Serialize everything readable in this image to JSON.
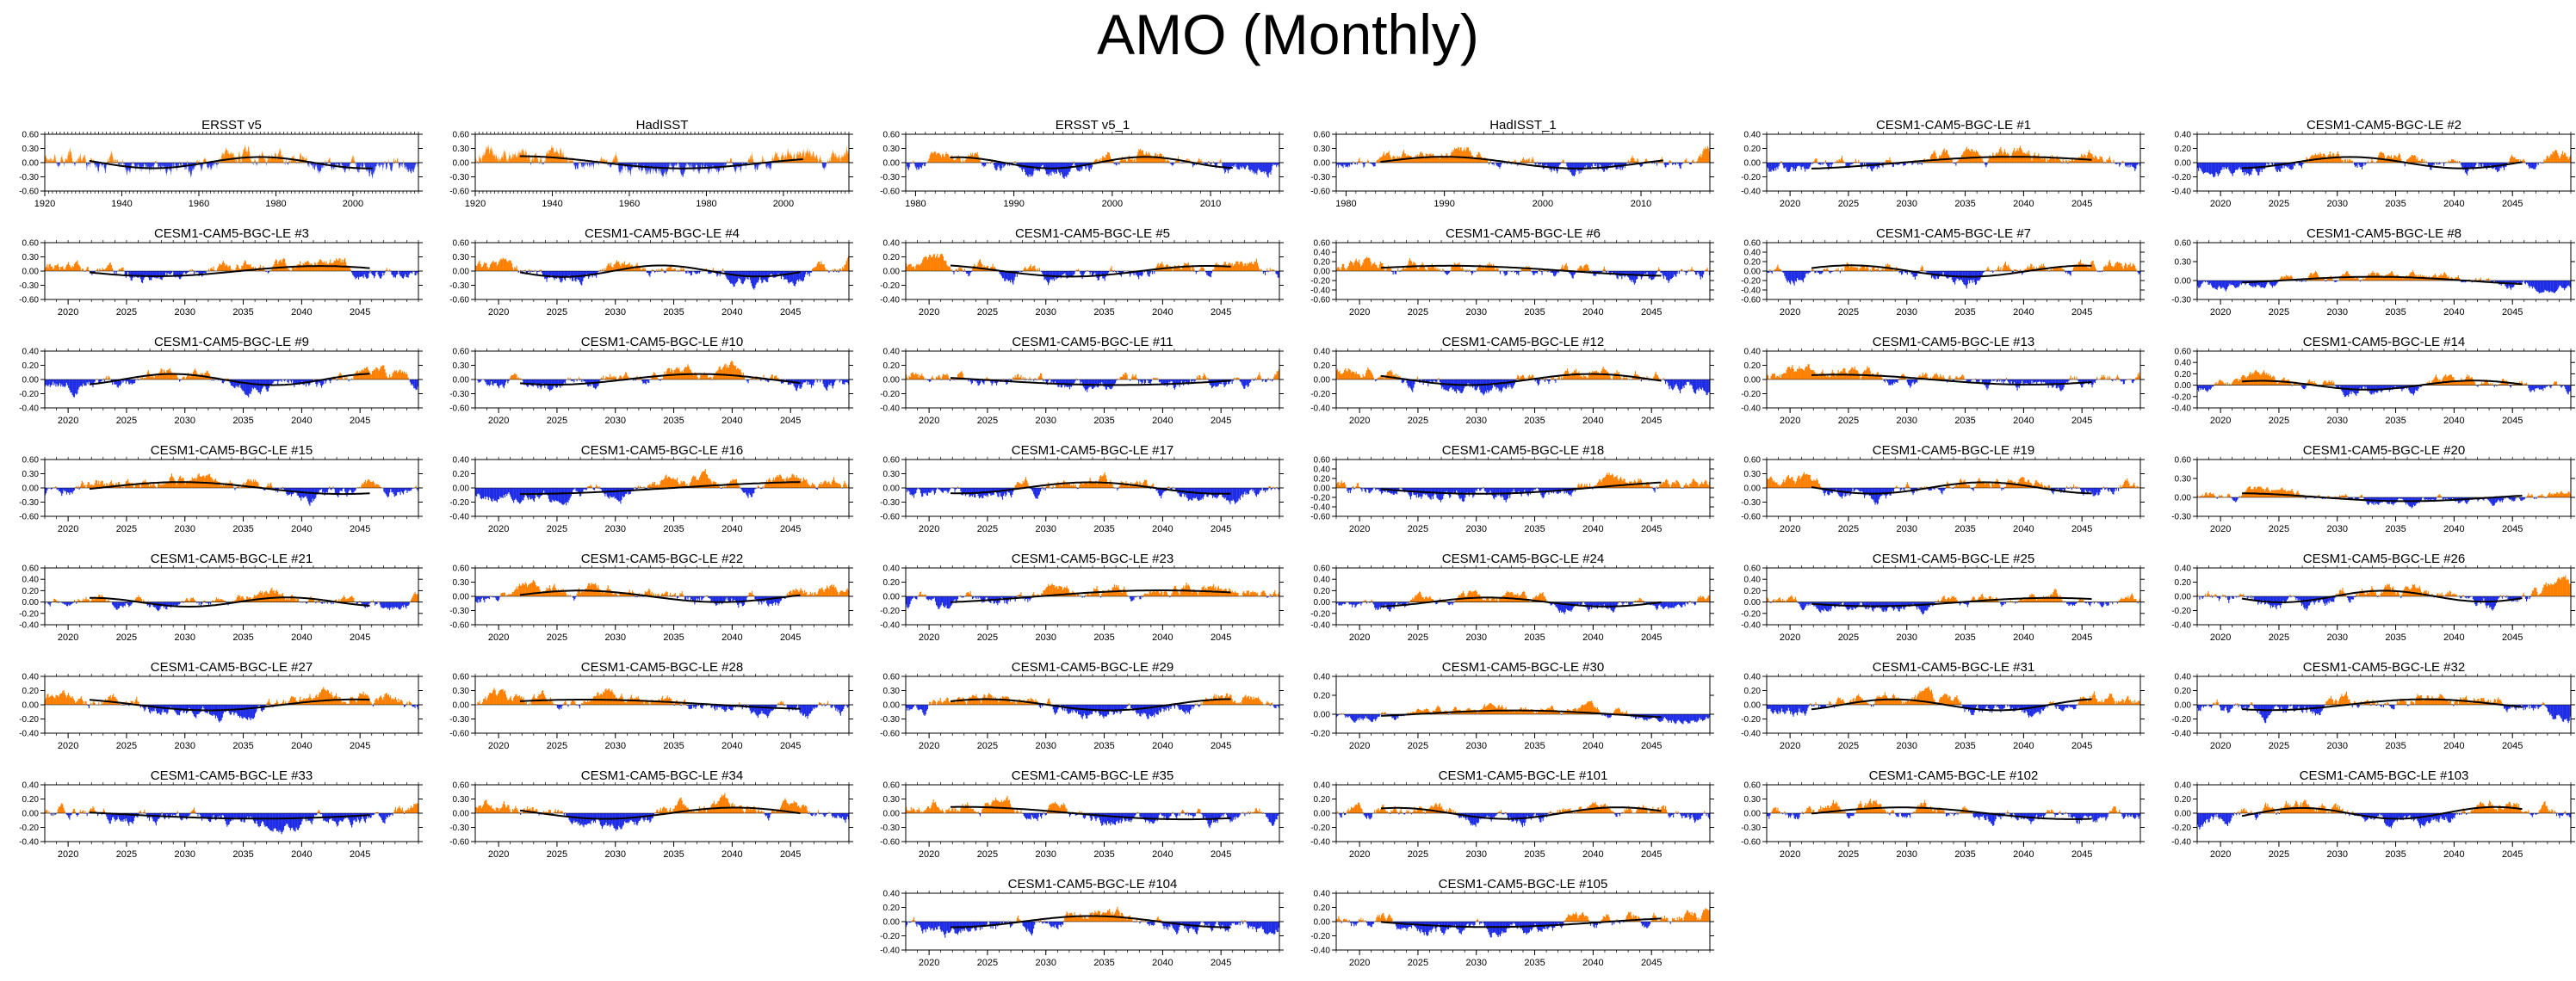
{
  "title": "AMO (Monthly)",
  "colors": {
    "positive": "#ff8000",
    "negative": "#1f2ee6",
    "trend": "#000000",
    "axis": "#000000"
  },
  "panels": [
    {
      "title": "ERSST v5",
      "period": "historical",
      "xticks": [
        "1920",
        "1940",
        "1960",
        "1980",
        "2000"
      ],
      "yticks": [
        "0.60",
        "0.30",
        "0.00",
        "-0.30",
        "-0.60"
      ],
      "ylim": [
        -0.6,
        0.6
      ]
    },
    {
      "title": "HadISST",
      "period": "historical",
      "xticks": [
        "1920",
        "1940",
        "1960",
        "1980",
        "2000"
      ],
      "yticks": [
        "0.60",
        "0.30",
        "0.00",
        "-0.30",
        "-0.60"
      ],
      "ylim": [
        -0.6,
        0.6
      ]
    },
    {
      "title": "ERSST v5_1",
      "period": "recent",
      "xticks": [
        "1980",
        "1990",
        "2000",
        "2010"
      ],
      "yticks": [
        "0.60",
        "0.30",
        "0.00",
        "-0.30",
        "-0.60"
      ],
      "ylim": [
        -0.6,
        0.6
      ]
    },
    {
      "title": "HadISST_1",
      "period": "recent",
      "xticks": [
        "1980",
        "1990",
        "2000",
        "2010"
      ],
      "yticks": [
        "0.60",
        "0.30",
        "0.00",
        "-0.30",
        "-0.60"
      ],
      "ylim": [
        -0.6,
        0.6
      ]
    },
    {
      "title": "CESM1-CAM5-BGC-LE #1",
      "period": "future",
      "xticks": [
        "2020",
        "2025",
        "2030",
        "2035",
        "2040",
        "2045"
      ],
      "yticks": [
        "0.40",
        "0.20",
        "0.00",
        "-0.20",
        "-0.40"
      ],
      "ylim": [
        -0.4,
        0.4
      ]
    },
    {
      "title": "CESM1-CAM5-BGC-LE #2",
      "period": "future",
      "xticks": [
        "2020",
        "2025",
        "2030",
        "2035",
        "2040",
        "2045"
      ],
      "yticks": [
        "0.40",
        "0.20",
        "0.00",
        "-0.20",
        "-0.40"
      ],
      "ylim": [
        -0.4,
        0.4
      ]
    },
    {
      "title": "CESM1-CAM5-BGC-LE #3",
      "period": "future",
      "xticks": [
        "2020",
        "2025",
        "2030",
        "2035",
        "2040",
        "2045"
      ],
      "yticks": [
        "0.60",
        "0.30",
        "0.00",
        "-0.30",
        "-0.60"
      ],
      "ylim": [
        -0.6,
        0.6
      ]
    },
    {
      "title": "CESM1-CAM5-BGC-LE #4",
      "period": "future",
      "xticks": [
        "2020",
        "2025",
        "2030",
        "2035",
        "2040",
        "2045"
      ],
      "yticks": [
        "0.60",
        "0.30",
        "0.00",
        "-0.30",
        "-0.60"
      ],
      "ylim": [
        -0.6,
        0.6
      ]
    },
    {
      "title": "CESM1-CAM5-BGC-LE #5",
      "period": "future",
      "xticks": [
        "2020",
        "2025",
        "2030",
        "2035",
        "2040",
        "2045"
      ],
      "yticks": [
        "0.40",
        "0.20",
        "0.00",
        "-0.20",
        "-0.40"
      ],
      "ylim": [
        -0.4,
        0.4
      ]
    },
    {
      "title": "CESM1-CAM5-BGC-LE #6",
      "period": "future",
      "xticks": [
        "2020",
        "2025",
        "2030",
        "2035",
        "2040",
        "2045"
      ],
      "yticks": [
        "0.60",
        "0.40",
        "0.20",
        "0.00",
        "-0.20",
        "-0.40",
        "-0.60"
      ],
      "ylim": [
        -0.6,
        0.6
      ]
    },
    {
      "title": "CESM1-CAM5-BGC-LE #7",
      "period": "future",
      "xticks": [
        "2020",
        "2025",
        "2030",
        "2035",
        "2040",
        "2045"
      ],
      "yticks": [
        "0.60",
        "0.40",
        "0.20",
        "0.00",
        "-0.20",
        "-0.40",
        "-0.60"
      ],
      "ylim": [
        -0.6,
        0.6
      ]
    },
    {
      "title": "CESM1-CAM5-BGC-LE #8",
      "period": "future",
      "xticks": [
        "2020",
        "2025",
        "2030",
        "2035",
        "2040",
        "2045"
      ],
      "yticks": [
        "0.60",
        "0.30",
        "0.00",
        "-0.30"
      ],
      "ylim": [
        -0.3,
        0.6
      ]
    },
    {
      "title": "CESM1-CAM5-BGC-LE #9",
      "period": "future",
      "xticks": [
        "2020",
        "2025",
        "2030",
        "2035",
        "2040",
        "2045"
      ],
      "yticks": [
        "0.40",
        "0.20",
        "0.00",
        "-0.20",
        "-0.40"
      ],
      "ylim": [
        -0.4,
        0.4
      ]
    },
    {
      "title": "CESM1-CAM5-BGC-LE #10",
      "period": "future",
      "xticks": [
        "2020",
        "2025",
        "2030",
        "2035",
        "2040",
        "2045"
      ],
      "yticks": [
        "0.60",
        "0.30",
        "0.00",
        "-0.30",
        "-0.60"
      ],
      "ylim": [
        -0.6,
        0.6
      ]
    },
    {
      "title": "CESM1-CAM5-BGC-LE #11",
      "period": "future",
      "xticks": [
        "2020",
        "2025",
        "2030",
        "2035",
        "2040",
        "2045"
      ],
      "yticks": [
        "0.40",
        "0.20",
        "0.00",
        "-0.20",
        "-0.40"
      ],
      "ylim": [
        -0.4,
        0.4
      ]
    },
    {
      "title": "CESM1-CAM5-BGC-LE #12",
      "period": "future",
      "xticks": [
        "2020",
        "2025",
        "2030",
        "2035",
        "2040",
        "2045"
      ],
      "yticks": [
        "0.40",
        "0.20",
        "0.00",
        "-0.20",
        "-0.40"
      ],
      "ylim": [
        -0.4,
        0.4
      ]
    },
    {
      "title": "CESM1-CAM5-BGC-LE #13",
      "period": "future",
      "xticks": [
        "2020",
        "2025",
        "2030",
        "2035",
        "2040",
        "2045"
      ],
      "yticks": [
        "0.40",
        "0.20",
        "0.00",
        "-0.20",
        "-0.40"
      ],
      "ylim": [
        -0.4,
        0.4
      ]
    },
    {
      "title": "CESM1-CAM5-BGC-LE #14",
      "period": "future",
      "xticks": [
        "2020",
        "2025",
        "2030",
        "2035",
        "2040",
        "2045"
      ],
      "yticks": [
        "0.60",
        "0.40",
        "0.20",
        "0.00",
        "-0.20",
        "-0.40"
      ],
      "ylim": [
        -0.4,
        0.6
      ]
    },
    {
      "title": "CESM1-CAM5-BGC-LE #15",
      "period": "future",
      "xticks": [
        "2020",
        "2025",
        "2030",
        "2035",
        "2040",
        "2045"
      ],
      "yticks": [
        "0.60",
        "0.30",
        "0.00",
        "-0.30",
        "-0.60"
      ],
      "ylim": [
        -0.6,
        0.6
      ]
    },
    {
      "title": "CESM1-CAM5-BGC-LE #16",
      "period": "future",
      "xticks": [
        "2020",
        "2025",
        "2030",
        "2035",
        "2040",
        "2045"
      ],
      "yticks": [
        "0.40",
        "0.20",
        "0.00",
        "-0.20",
        "-0.40"
      ],
      "ylim": [
        -0.4,
        0.4
      ]
    },
    {
      "title": "CESM1-CAM5-BGC-LE #17",
      "period": "future",
      "xticks": [
        "2020",
        "2025",
        "2030",
        "2035",
        "2040",
        "2045"
      ],
      "yticks": [
        "0.60",
        "0.30",
        "0.00",
        "-0.30",
        "-0.60"
      ],
      "ylim": [
        -0.6,
        0.6
      ]
    },
    {
      "title": "CESM1-CAM5-BGC-LE #18",
      "period": "future",
      "xticks": [
        "2020",
        "2025",
        "2030",
        "2035",
        "2040",
        "2045"
      ],
      "yticks": [
        "0.60",
        "0.40",
        "0.20",
        "0.00",
        "-0.20",
        "-0.40",
        "-0.60"
      ],
      "ylim": [
        -0.6,
        0.6
      ]
    },
    {
      "title": "CESM1-CAM5-BGC-LE #19",
      "period": "future",
      "xticks": [
        "2020",
        "2025",
        "2030",
        "2035",
        "2040",
        "2045"
      ],
      "yticks": [
        "0.60",
        "0.30",
        "0.00",
        "-0.30",
        "-0.60"
      ],
      "ylim": [
        -0.6,
        0.6
      ]
    },
    {
      "title": "CESM1-CAM5-BGC-LE #20",
      "period": "future",
      "xticks": [
        "2020",
        "2025",
        "2030",
        "2035",
        "2040",
        "2045"
      ],
      "yticks": [
        "0.60",
        "0.30",
        "0.00",
        "-0.30"
      ],
      "ylim": [
        -0.3,
        0.6
      ]
    },
    {
      "title": "CESM1-CAM5-BGC-LE #21",
      "period": "future",
      "xticks": [
        "2020",
        "2025",
        "2030",
        "2035",
        "2040",
        "2045"
      ],
      "yticks": [
        "0.60",
        "0.40",
        "0.20",
        "0.00",
        "-0.20",
        "-0.40"
      ],
      "ylim": [
        -0.4,
        0.6
      ]
    },
    {
      "title": "CESM1-CAM5-BGC-LE #22",
      "period": "future",
      "xticks": [
        "2020",
        "2025",
        "2030",
        "2035",
        "2040",
        "2045"
      ],
      "yticks": [
        "0.60",
        "0.30",
        "0.00",
        "-0.30",
        "-0.60"
      ],
      "ylim": [
        -0.6,
        0.6
      ]
    },
    {
      "title": "CESM1-CAM5-BGC-LE #23",
      "period": "future",
      "xticks": [
        "2020",
        "2025",
        "2030",
        "2035",
        "2040",
        "2045"
      ],
      "yticks": [
        "0.40",
        "0.20",
        "0.00",
        "-0.20",
        "-0.40"
      ],
      "ylim": [
        -0.4,
        0.4
      ]
    },
    {
      "title": "CESM1-CAM5-BGC-LE #24",
      "period": "future",
      "xticks": [
        "2020",
        "2025",
        "2030",
        "2035",
        "2040",
        "2045"
      ],
      "yticks": [
        "0.60",
        "0.40",
        "0.20",
        "0.00",
        "-0.20",
        "-0.40"
      ],
      "ylim": [
        -0.4,
        0.6
      ]
    },
    {
      "title": "CESM1-CAM5-BGC-LE #25",
      "period": "future",
      "xticks": [
        "2020",
        "2025",
        "2030",
        "2035",
        "2040",
        "2045"
      ],
      "yticks": [
        "0.60",
        "0.40",
        "0.20",
        "0.00",
        "-0.20",
        "-0.40"
      ],
      "ylim": [
        -0.4,
        0.6
      ]
    },
    {
      "title": "CESM1-CAM5-BGC-LE #26",
      "period": "future",
      "xticks": [
        "2020",
        "2025",
        "2030",
        "2035",
        "2040",
        "2045"
      ],
      "yticks": [
        "0.40",
        "0.20",
        "0.00",
        "-0.20",
        "-0.40"
      ],
      "ylim": [
        -0.4,
        0.4
      ]
    },
    {
      "title": "CESM1-CAM5-BGC-LE #27",
      "period": "future",
      "xticks": [
        "2020",
        "2025",
        "2030",
        "2035",
        "2040",
        "2045"
      ],
      "yticks": [
        "0.40",
        "0.20",
        "0.00",
        "-0.20",
        "-0.40"
      ],
      "ylim": [
        -0.4,
        0.4
      ]
    },
    {
      "title": "CESM1-CAM5-BGC-LE #28",
      "period": "future",
      "xticks": [
        "2020",
        "2025",
        "2030",
        "2035",
        "2040",
        "2045"
      ],
      "yticks": [
        "0.60",
        "0.30",
        "0.00",
        "-0.30",
        "-0.60"
      ],
      "ylim": [
        -0.6,
        0.6
      ]
    },
    {
      "title": "CESM1-CAM5-BGC-LE #29",
      "period": "future",
      "xticks": [
        "2020",
        "2025",
        "2030",
        "2035",
        "2040",
        "2045"
      ],
      "yticks": [
        "0.60",
        "0.30",
        "0.00",
        "-0.30",
        "-0.60"
      ],
      "ylim": [
        -0.6,
        0.6
      ]
    },
    {
      "title": "CESM1-CAM5-BGC-LE #30",
      "period": "future",
      "xticks": [
        "2020",
        "2025",
        "2030",
        "2035",
        "2040",
        "2045"
      ],
      "yticks": [
        "0.40",
        "0.20",
        "0.00",
        "-0.20"
      ],
      "ylim": [
        -0.2,
        0.4
      ]
    },
    {
      "title": "CESM1-CAM5-BGC-LE #31",
      "period": "future",
      "xticks": [
        "2020",
        "2025",
        "2030",
        "2035",
        "2040",
        "2045"
      ],
      "yticks": [
        "0.40",
        "0.20",
        "0.00",
        "-0.20",
        "-0.40"
      ],
      "ylim": [
        -0.4,
        0.4
      ]
    },
    {
      "title": "CESM1-CAM5-BGC-LE #32",
      "period": "future",
      "xticks": [
        "2020",
        "2025",
        "2030",
        "2035",
        "2040",
        "2045"
      ],
      "yticks": [
        "0.40",
        "0.20",
        "0.00",
        "-0.20",
        "-0.40"
      ],
      "ylim": [
        -0.4,
        0.4
      ]
    },
    {
      "title": "CESM1-CAM5-BGC-LE #33",
      "period": "future",
      "xticks": [
        "2020",
        "2025",
        "2030",
        "2035",
        "2040",
        "2045"
      ],
      "yticks": [
        "0.40",
        "0.20",
        "0.00",
        "-0.20",
        "-0.40"
      ],
      "ylim": [
        -0.4,
        0.4
      ]
    },
    {
      "title": "CESM1-CAM5-BGC-LE #34",
      "period": "future",
      "xticks": [
        "2020",
        "2025",
        "2030",
        "2035",
        "2040",
        "2045"
      ],
      "yticks": [
        "0.60",
        "0.30",
        "0.00",
        "-0.30",
        "-0.60"
      ],
      "ylim": [
        -0.6,
        0.6
      ]
    },
    {
      "title": "CESM1-CAM5-BGC-LE #35",
      "period": "future",
      "xticks": [
        "2020",
        "2025",
        "2030",
        "2035",
        "2040",
        "2045"
      ],
      "yticks": [
        "0.60",
        "0.30",
        "0.00",
        "-0.30",
        "-0.60"
      ],
      "ylim": [
        -0.6,
        0.6
      ]
    },
    {
      "title": "CESM1-CAM5-BGC-LE #101",
      "period": "future",
      "xticks": [
        "2020",
        "2025",
        "2030",
        "2035",
        "2040",
        "2045"
      ],
      "yticks": [
        "0.40",
        "0.20",
        "0.00",
        "-0.20",
        "-0.40"
      ],
      "ylim": [
        -0.4,
        0.4
      ]
    },
    {
      "title": "CESM1-CAM5-BGC-LE #102",
      "period": "future",
      "xticks": [
        "2020",
        "2025",
        "2030",
        "2035",
        "2040",
        "2045"
      ],
      "yticks": [
        "0.60",
        "0.30",
        "0.00",
        "-0.30",
        "-0.60"
      ],
      "ylim": [
        -0.6,
        0.6
      ]
    },
    {
      "title": "CESM1-CAM5-BGC-LE #103",
      "period": "future",
      "xticks": [
        "2020",
        "2025",
        "2030",
        "2035",
        "2040",
        "2045"
      ],
      "yticks": [
        "0.40",
        "0.20",
        "0.00",
        "-0.20",
        "-0.40"
      ],
      "ylim": [
        -0.4,
        0.4
      ]
    },
    {
      "title": "CESM1-CAM5-BGC-LE #104",
      "period": "future",
      "xticks": [
        "2020",
        "2025",
        "2030",
        "2035",
        "2040",
        "2045"
      ],
      "yticks": [
        "0.40",
        "0.20",
        "0.00",
        "-0.20",
        "-0.40"
      ],
      "ylim": [
        -0.4,
        0.4
      ]
    },
    {
      "title": "CESM1-CAM5-BGC-LE #105",
      "period": "future",
      "xticks": [
        "2020",
        "2025",
        "2030",
        "2035",
        "2040",
        "2045"
      ],
      "yticks": [
        "0.40",
        "0.20",
        "0.00",
        "-0.20",
        "-0.40"
      ],
      "ylim": [
        -0.4,
        0.4
      ]
    }
  ],
  "chart_data": {
    "type": "area",
    "title": "AMO (Monthly)",
    "description_of_series": "Monthly AMO index anomalies per dataset/ensemble member; positive values filled orange, negative values filled blue, black line is low-pass filtered trend",
    "periods": {
      "historical": {
        "xlim": [
          1920,
          2017
        ]
      },
      "recent": {
        "xlim": [
          1979,
          2017
        ]
      },
      "future": {
        "xlim": [
          2018,
          2050
        ]
      }
    },
    "series_names": [
      "ERSST v5",
      "HadISST",
      "ERSST v5_1",
      "HadISST_1",
      "CESM1-CAM5-BGC-LE #1",
      "CESM1-CAM5-BGC-LE #2",
      "CESM1-CAM5-BGC-LE #3",
      "CESM1-CAM5-BGC-LE #4",
      "CESM1-CAM5-BGC-LE #5",
      "CESM1-CAM5-BGC-LE #6",
      "CESM1-CAM5-BGC-LE #7",
      "CESM1-CAM5-BGC-LE #8",
      "CESM1-CAM5-BGC-LE #9",
      "CESM1-CAM5-BGC-LE #10",
      "CESM1-CAM5-BGC-LE #11",
      "CESM1-CAM5-BGC-LE #12",
      "CESM1-CAM5-BGC-LE #13",
      "CESM1-CAM5-BGC-LE #14",
      "CESM1-CAM5-BGC-LE #15",
      "CESM1-CAM5-BGC-LE #16",
      "CESM1-CAM5-BGC-LE #17",
      "CESM1-CAM5-BGC-LE #18",
      "CESM1-CAM5-BGC-LE #19",
      "CESM1-CAM5-BGC-LE #20",
      "CESM1-CAM5-BGC-LE #21",
      "CESM1-CAM5-BGC-LE #22",
      "CESM1-CAM5-BGC-LE #23",
      "CESM1-CAM5-BGC-LE #24",
      "CESM1-CAM5-BGC-LE #25",
      "CESM1-CAM5-BGC-LE #26",
      "CESM1-CAM5-BGC-LE #27",
      "CESM1-CAM5-BGC-LE #28",
      "CESM1-CAM5-BGC-LE #29",
      "CESM1-CAM5-BGC-LE #30",
      "CESM1-CAM5-BGC-LE #31",
      "CESM1-CAM5-BGC-LE #32",
      "CESM1-CAM5-BGC-LE #33",
      "CESM1-CAM5-BGC-LE #34",
      "CESM1-CAM5-BGC-LE #35",
      "CESM1-CAM5-BGC-LE #101",
      "CESM1-CAM5-BGC-LE #102",
      "CESM1-CAM5-BGC-LE #103",
      "CESM1-CAM5-BGC-LE #104",
      "CESM1-CAM5-BGC-LE #105"
    ]
  }
}
